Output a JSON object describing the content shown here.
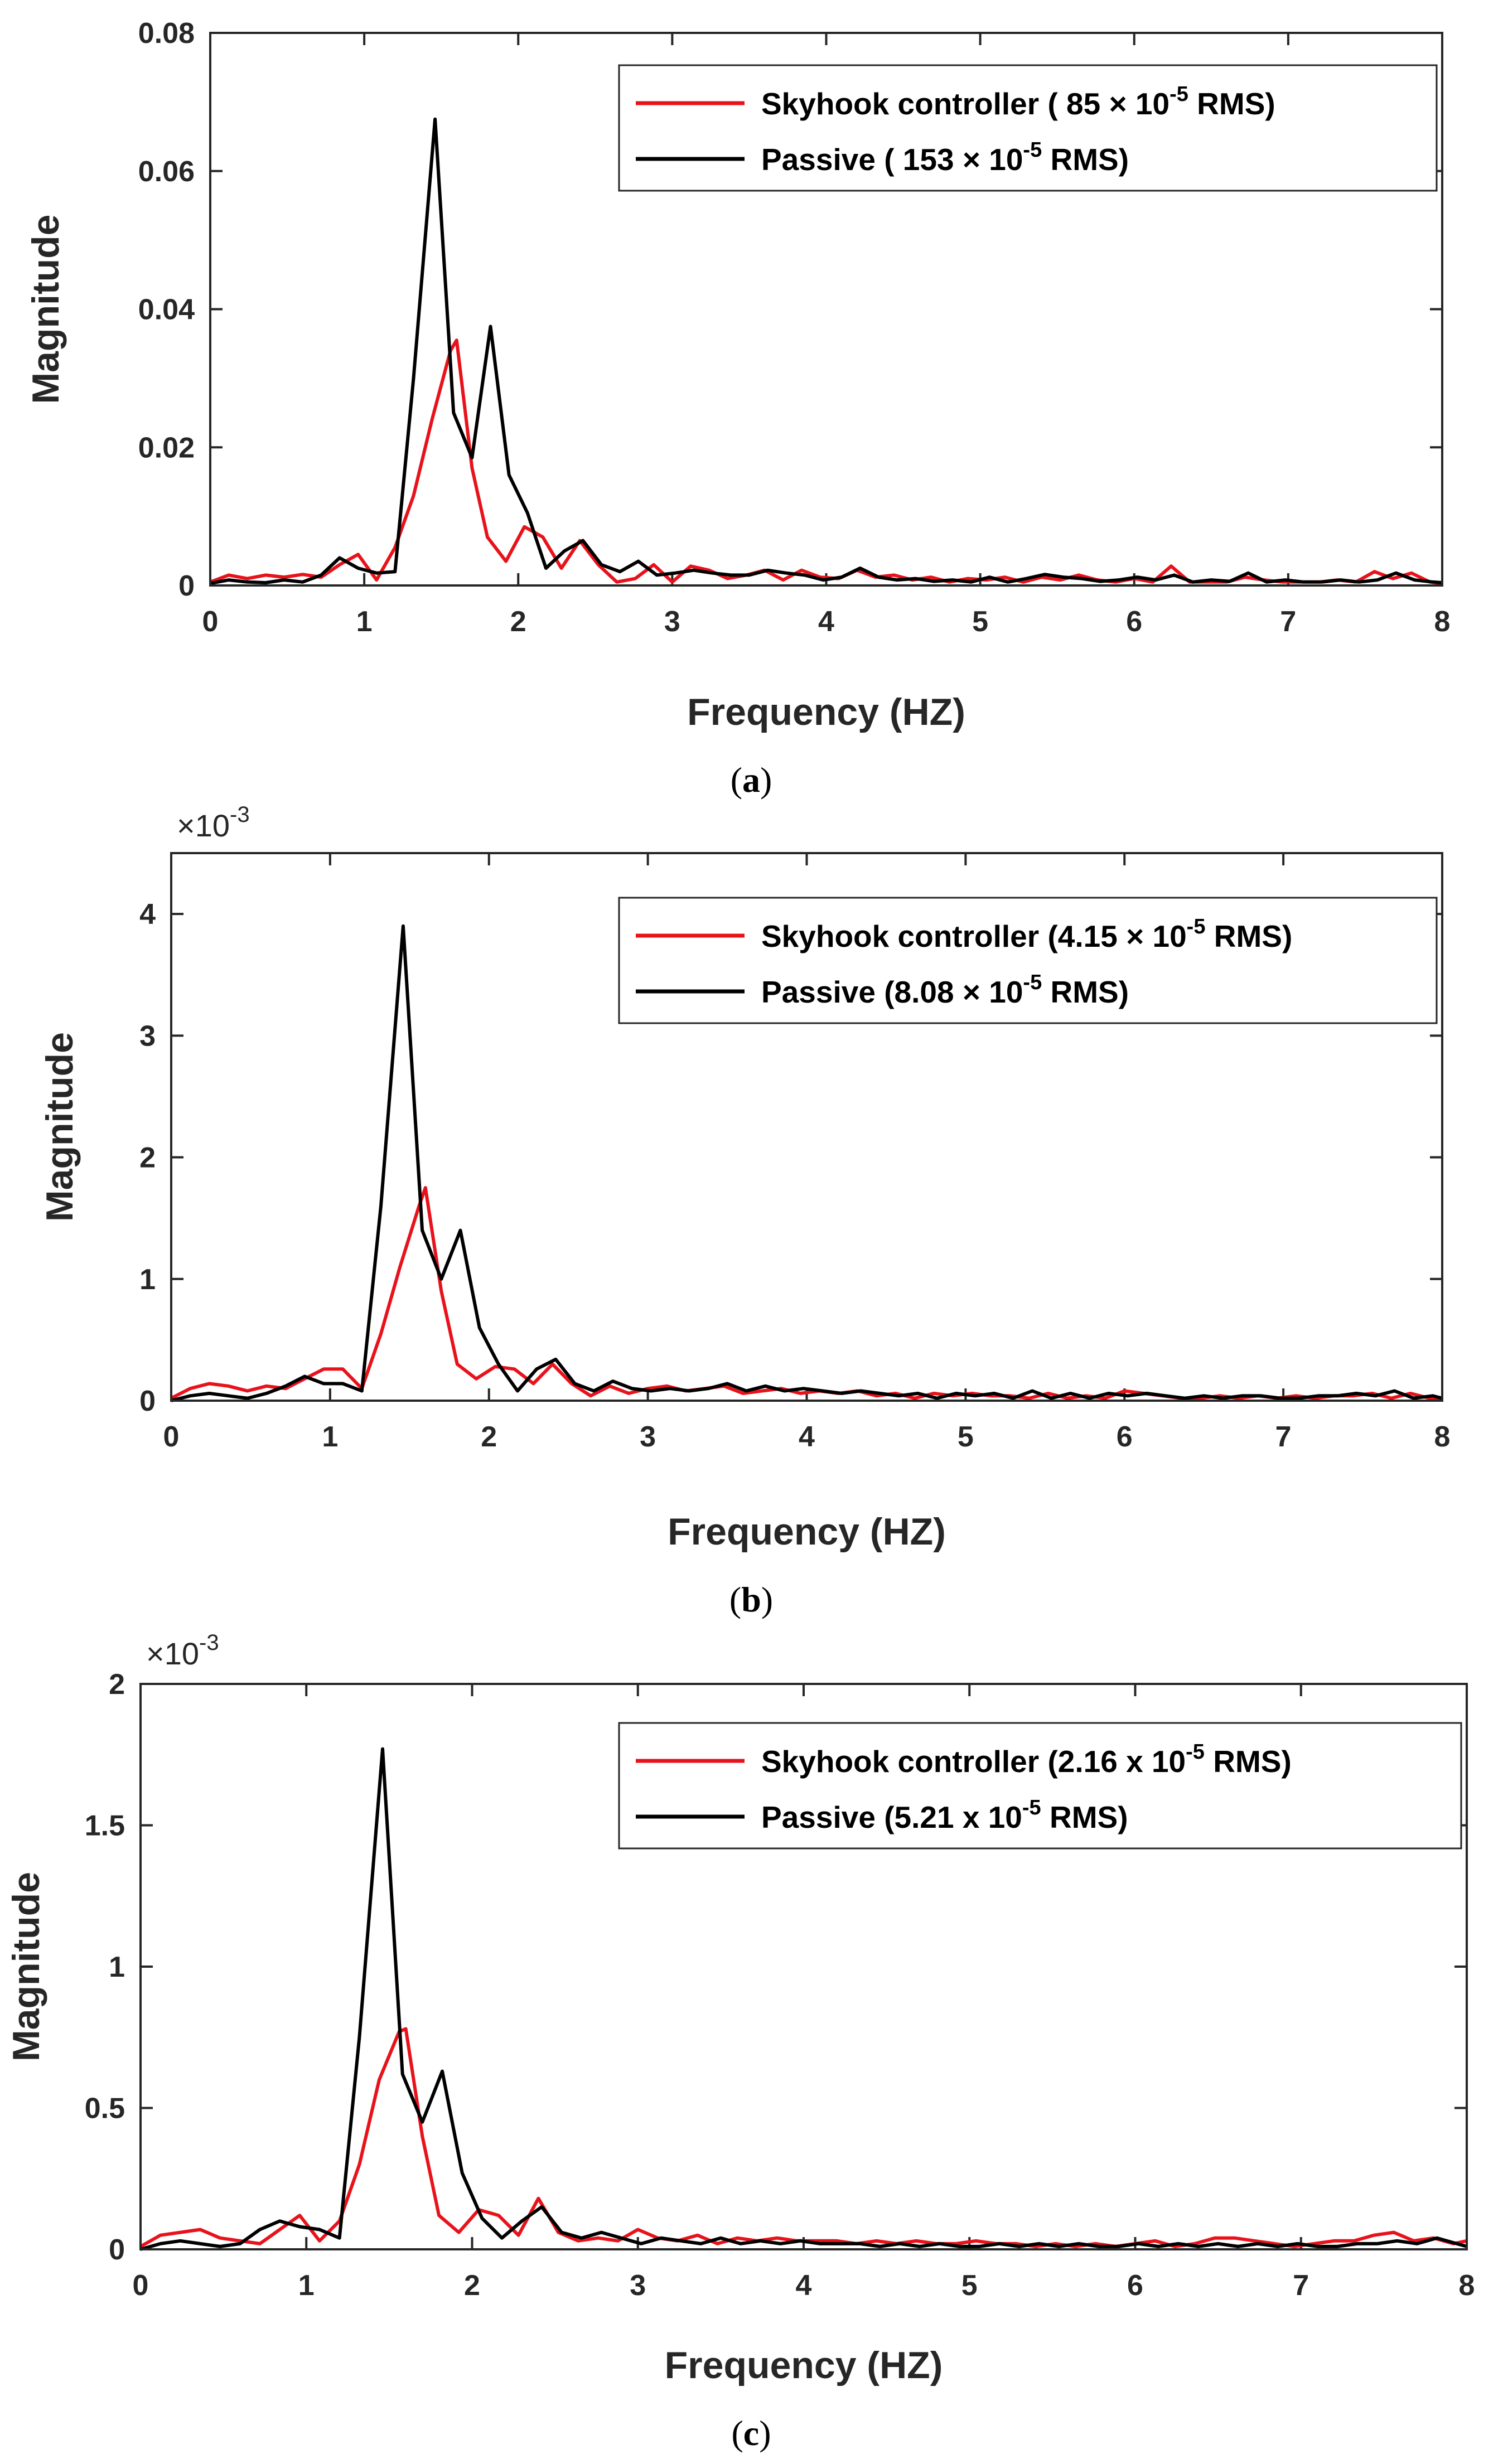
{
  "chart_data": [
    {
      "type": "line",
      "caption": {
        "open": "(",
        "letter": "a",
        "close": ")"
      },
      "xlabel": "Frequency (HZ)",
      "ylabel": "Magnitude",
      "xlim": [
        0,
        8
      ],
      "ylim": [
        0,
        0.08
      ],
      "xticks": [
        "0",
        "1",
        "2",
        "3",
        "4",
        "5",
        "6",
        "7",
        "8"
      ],
      "yticks": [
        "0",
        "0.02",
        "0.04",
        "0.06",
        "0.08"
      ],
      "ytick_values": [
        0,
        0.02,
        0.04,
        0.06,
        0.08
      ],
      "exponent_label": null,
      "legend_position": "top-right",
      "series": [
        {
          "name": "Skyhook controller",
          "legend_prefix": "Skyhook controller ( 85 × 10",
          "legend_sup": "-5",
          "legend_suffix": " RMS)",
          "color": "#e8121b",
          "x": [
            0,
            0.12,
            0.24,
            0.36,
            0.48,
            0.6,
            0.72,
            0.84,
            0.96,
            1.08,
            1.2,
            1.32,
            1.44,
            1.56,
            1.6,
            1.7,
            1.8,
            1.92,
            2.04,
            2.16,
            2.28,
            2.4,
            2.52,
            2.64,
            2.76,
            2.88,
            3.0,
            3.12,
            3.24,
            3.36,
            3.48,
            3.6,
            3.72,
            3.84,
            3.96,
            4.08,
            4.2,
            4.32,
            4.44,
            4.56,
            4.68,
            4.8,
            4.92,
            5.04,
            5.16,
            5.28,
            5.4,
            5.52,
            5.64,
            5.76,
            5.88,
            6.0,
            6.12,
            6.24,
            6.36,
            6.48,
            6.6,
            6.72,
            6.84,
            6.96,
            7.08,
            7.2,
            7.32,
            7.44,
            7.56,
            7.68,
            7.8,
            7.92,
            8.0
          ],
          "values": [
            0.0005,
            0.0015,
            0.001,
            0.0015,
            0.0012,
            0.0016,
            0.0012,
            0.003,
            0.0045,
            0.0008,
            0.0055,
            0.013,
            0.024,
            0.034,
            0.0355,
            0.017,
            0.007,
            0.0035,
            0.0085,
            0.007,
            0.0025,
            0.0065,
            0.003,
            0.0005,
            0.001,
            0.003,
            0.0005,
            0.0028,
            0.0022,
            0.001,
            0.0015,
            0.0022,
            0.0008,
            0.0022,
            0.0012,
            0.001,
            0.0022,
            0.0012,
            0.0015,
            0.0008,
            0.0012,
            0.0005,
            0.001,
            0.0008,
            0.0012,
            0.0005,
            0.0012,
            0.0008,
            0.0015,
            0.0008,
            0.0005,
            0.001,
            0.0005,
            0.0028,
            0.0005,
            0.0005,
            0.0005,
            0.0012,
            0.0008,
            0.0005,
            0.0005,
            0.0005,
            0.0008,
            0.0005,
            0.002,
            0.001,
            0.0018,
            0.0005,
            0.0003
          ]
        },
        {
          "name": "Passive",
          "legend_prefix": "Passive  ( 153 × 10",
          "legend_sup": "-5",
          "legend_suffix": " RMS)",
          "color": "#000000",
          "x": [
            0,
            0.12,
            0.24,
            0.36,
            0.48,
            0.6,
            0.72,
            0.84,
            0.96,
            1.08,
            1.2,
            1.32,
            1.46,
            1.58,
            1.7,
            1.82,
            1.94,
            2.06,
            2.18,
            2.3,
            2.42,
            2.54,
            2.66,
            2.78,
            2.9,
            3.02,
            3.14,
            3.26,
            3.38,
            3.5,
            3.62,
            3.74,
            3.86,
            3.98,
            4.1,
            4.22,
            4.34,
            4.46,
            4.58,
            4.7,
            4.82,
            4.94,
            5.06,
            5.18,
            5.3,
            5.42,
            5.54,
            5.66,
            5.78,
            5.9,
            6.02,
            6.14,
            6.26,
            6.38,
            6.5,
            6.62,
            6.74,
            6.86,
            6.98,
            7.1,
            7.22,
            7.34,
            7.46,
            7.58,
            7.7,
            7.82,
            7.94,
            8.0
          ],
          "values": [
            0.0003,
            0.0008,
            0.0005,
            0.0004,
            0.0008,
            0.0005,
            0.0015,
            0.004,
            0.0025,
            0.0018,
            0.002,
            0.03,
            0.0675,
            0.025,
            0.0185,
            0.0375,
            0.016,
            0.0105,
            0.0025,
            0.005,
            0.0065,
            0.003,
            0.002,
            0.0035,
            0.0015,
            0.0018,
            0.0022,
            0.0018,
            0.0015,
            0.0015,
            0.0022,
            0.0018,
            0.0015,
            0.0008,
            0.0012,
            0.0025,
            0.0012,
            0.0008,
            0.001,
            0.0006,
            0.0008,
            0.0005,
            0.0012,
            0.0005,
            0.001,
            0.0016,
            0.0012,
            0.001,
            0.0006,
            0.0008,
            0.0012,
            0.0008,
            0.0015,
            0.0005,
            0.0008,
            0.0006,
            0.0018,
            0.0005,
            0.0008,
            0.0005,
            0.0005,
            0.0008,
            0.0005,
            0.0008,
            0.0018,
            0.0008,
            0.0005,
            0.0004
          ]
        }
      ]
    },
    {
      "type": "line",
      "caption": {
        "open": "(",
        "letter": "b",
        "close": ")"
      },
      "xlabel": "Frequency (HZ)",
      "ylabel": "Magnitude",
      "xlim": [
        0,
        8
      ],
      "ylim": [
        0,
        4.5
      ],
      "xticks": [
        "0",
        "1",
        "2",
        "3",
        "4",
        "5",
        "6",
        "7",
        "8"
      ],
      "yticks": [
        "0",
        "1",
        "2",
        "3",
        "4"
      ],
      "ytick_values": [
        0,
        1,
        2,
        3,
        4
      ],
      "exponent_label": {
        "base": "×10",
        "exp": "-3"
      },
      "legend_position": "top-right",
      "series": [
        {
          "name": "Skyhook controller",
          "legend_prefix": "Skyhook controller (4.15 × 10",
          "legend_sup": "-5",
          "legend_suffix": " RMS)",
          "color": "#e8121b",
          "x": [
            0,
            0.12,
            0.24,
            0.36,
            0.48,
            0.6,
            0.72,
            0.84,
            0.96,
            1.08,
            1.2,
            1.32,
            1.44,
            1.56,
            1.6,
            1.7,
            1.8,
            1.92,
            2.04,
            2.16,
            2.28,
            2.4,
            2.52,
            2.64,
            2.76,
            2.88,
            3.0,
            3.12,
            3.24,
            3.36,
            3.48,
            3.6,
            3.72,
            3.84,
            3.96,
            4.08,
            4.2,
            4.32,
            4.44,
            4.56,
            4.68,
            4.8,
            4.92,
            5.04,
            5.16,
            5.28,
            5.4,
            5.52,
            5.64,
            5.76,
            5.88,
            6.0,
            6.12,
            6.24,
            6.36,
            6.48,
            6.6,
            6.72,
            6.84,
            6.96,
            7.08,
            7.2,
            7.32,
            7.44,
            7.56,
            7.68,
            7.8,
            7.92,
            8.0
          ],
          "values": [
            0.02,
            0.1,
            0.14,
            0.12,
            0.08,
            0.12,
            0.1,
            0.18,
            0.26,
            0.26,
            0.1,
            0.55,
            1.1,
            1.6,
            1.75,
            0.9,
            0.3,
            0.18,
            0.28,
            0.26,
            0.14,
            0.3,
            0.14,
            0.04,
            0.12,
            0.06,
            0.1,
            0.12,
            0.08,
            0.1,
            0.12,
            0.06,
            0.08,
            0.1,
            0.06,
            0.08,
            0.06,
            0.08,
            0.04,
            0.06,
            0.02,
            0.06,
            0.04,
            0.06,
            0.04,
            0.04,
            0.02,
            0.06,
            0.02,
            0.04,
            0.02,
            0.08,
            0.06,
            0.04,
            0.02,
            0.02,
            0.04,
            0.02,
            0.04,
            0.02,
            0.04,
            0.02,
            0.04,
            0.04,
            0.06,
            0.02,
            0.06,
            0.02,
            0.02
          ]
        },
        {
          "name": "Passive",
          "legend_prefix": "Passive  (8.08 × 10",
          "legend_sup": "-5",
          "legend_suffix": " RMS)",
          "color": "#000000",
          "x": [
            0,
            0.12,
            0.24,
            0.36,
            0.48,
            0.6,
            0.72,
            0.84,
            0.96,
            1.08,
            1.2,
            1.32,
            1.46,
            1.58,
            1.7,
            1.82,
            1.94,
            2.06,
            2.18,
            2.3,
            2.42,
            2.54,
            2.66,
            2.78,
            2.9,
            3.02,
            3.14,
            3.26,
            3.38,
            3.5,
            3.62,
            3.74,
            3.86,
            3.98,
            4.1,
            4.22,
            4.34,
            4.46,
            4.58,
            4.7,
            4.82,
            4.94,
            5.06,
            5.18,
            5.3,
            5.42,
            5.54,
            5.66,
            5.78,
            5.9,
            6.02,
            6.14,
            6.26,
            6.38,
            6.5,
            6.62,
            6.74,
            6.86,
            6.98,
            7.1,
            7.22,
            7.34,
            7.46,
            7.58,
            7.7,
            7.82,
            7.94,
            8.0
          ],
          "values": [
            0.0,
            0.04,
            0.06,
            0.04,
            0.02,
            0.06,
            0.12,
            0.2,
            0.14,
            0.14,
            0.08,
            1.6,
            3.9,
            1.4,
            1.0,
            1.4,
            0.6,
            0.3,
            0.08,
            0.26,
            0.34,
            0.14,
            0.08,
            0.16,
            0.1,
            0.08,
            0.1,
            0.08,
            0.1,
            0.14,
            0.08,
            0.12,
            0.08,
            0.1,
            0.08,
            0.06,
            0.08,
            0.06,
            0.04,
            0.06,
            0.02,
            0.06,
            0.04,
            0.06,
            0.02,
            0.08,
            0.02,
            0.06,
            0.02,
            0.06,
            0.04,
            0.06,
            0.04,
            0.02,
            0.04,
            0.02,
            0.04,
            0.04,
            0.02,
            0.02,
            0.04,
            0.04,
            0.06,
            0.04,
            0.08,
            0.02,
            0.04,
            0.02
          ]
        }
      ]
    },
    {
      "type": "line",
      "caption": {
        "open": "(",
        "letter": "c",
        "close": ")"
      },
      "xlabel": "Frequency (HZ)",
      "ylabel": "Magnitude",
      "xlim": [
        0,
        8
      ],
      "ylim": [
        0,
        2
      ],
      "xticks": [
        "0",
        "1",
        "2",
        "3",
        "4",
        "5",
        "6",
        "7",
        "8"
      ],
      "yticks": [
        "0",
        "0.5",
        "1",
        "1.5",
        "2"
      ],
      "ytick_values": [
        0,
        0.5,
        1,
        1.5,
        2
      ],
      "exponent_label": {
        "base": "×10",
        "exp": "-3"
      },
      "legend_position": "top-right",
      "series": [
        {
          "name": "Skyhook controller",
          "legend_prefix": "Skyhook controller (2.16 x 10",
          "legend_sup": "-5",
          "legend_suffix": " RMS)",
          "color": "#e8121b",
          "x": [
            0,
            0.12,
            0.24,
            0.36,
            0.48,
            0.6,
            0.72,
            0.84,
            0.96,
            1.08,
            1.2,
            1.32,
            1.44,
            1.56,
            1.6,
            1.7,
            1.8,
            1.92,
            2.04,
            2.16,
            2.28,
            2.4,
            2.52,
            2.64,
            2.76,
            2.88,
            3.0,
            3.12,
            3.24,
            3.36,
            3.48,
            3.6,
            3.72,
            3.84,
            3.96,
            4.08,
            4.2,
            4.32,
            4.44,
            4.56,
            4.68,
            4.8,
            4.92,
            5.04,
            5.16,
            5.28,
            5.4,
            5.52,
            5.64,
            5.76,
            5.88,
            6.0,
            6.12,
            6.24,
            6.36,
            6.48,
            6.6,
            6.72,
            6.84,
            6.96,
            7.08,
            7.2,
            7.32,
            7.44,
            7.56,
            7.68,
            7.8,
            7.92,
            8.0
          ],
          "values": [
            0.01,
            0.05,
            0.06,
            0.07,
            0.04,
            0.03,
            0.02,
            0.07,
            0.12,
            0.03,
            0.1,
            0.3,
            0.6,
            0.77,
            0.78,
            0.4,
            0.12,
            0.06,
            0.14,
            0.12,
            0.05,
            0.18,
            0.06,
            0.03,
            0.04,
            0.03,
            0.07,
            0.04,
            0.03,
            0.05,
            0.02,
            0.04,
            0.03,
            0.04,
            0.03,
            0.03,
            0.03,
            0.02,
            0.03,
            0.02,
            0.03,
            0.02,
            0.02,
            0.03,
            0.02,
            0.02,
            0.01,
            0.02,
            0.01,
            0.02,
            0.01,
            0.02,
            0.03,
            0.01,
            0.02,
            0.04,
            0.04,
            0.03,
            0.02,
            0.01,
            0.02,
            0.03,
            0.03,
            0.05,
            0.06,
            0.03,
            0.04,
            0.02,
            0.03
          ]
        },
        {
          "name": "Passive",
          "legend_prefix": "Passive  (5.21 x 10",
          "legend_sup": "-5",
          "legend_suffix": " RMS)",
          "color": "#000000",
          "x": [
            0,
            0.12,
            0.24,
            0.36,
            0.48,
            0.6,
            0.72,
            0.84,
            0.96,
            1.08,
            1.2,
            1.32,
            1.46,
            1.58,
            1.7,
            1.82,
            1.94,
            2.06,
            2.18,
            2.3,
            2.42,
            2.54,
            2.66,
            2.78,
            2.9,
            3.02,
            3.14,
            3.26,
            3.38,
            3.5,
            3.62,
            3.74,
            3.86,
            3.98,
            4.1,
            4.22,
            4.34,
            4.46,
            4.58,
            4.7,
            4.82,
            4.94,
            5.06,
            5.18,
            5.3,
            5.42,
            5.54,
            5.66,
            5.78,
            5.9,
            6.02,
            6.14,
            6.26,
            6.38,
            6.5,
            6.62,
            6.74,
            6.86,
            6.98,
            7.1,
            7.22,
            7.34,
            7.46,
            7.58,
            7.7,
            7.82,
            7.94,
            8.0
          ],
          "values": [
            0.0,
            0.02,
            0.03,
            0.02,
            0.01,
            0.02,
            0.07,
            0.1,
            0.08,
            0.07,
            0.04,
            0.75,
            1.77,
            0.62,
            0.45,
            0.63,
            0.27,
            0.11,
            0.04,
            0.1,
            0.15,
            0.06,
            0.04,
            0.06,
            0.04,
            0.02,
            0.04,
            0.03,
            0.02,
            0.04,
            0.02,
            0.03,
            0.02,
            0.03,
            0.02,
            0.02,
            0.02,
            0.01,
            0.02,
            0.01,
            0.02,
            0.01,
            0.01,
            0.02,
            0.01,
            0.02,
            0.01,
            0.02,
            0.01,
            0.01,
            0.02,
            0.01,
            0.02,
            0.01,
            0.02,
            0.01,
            0.02,
            0.01,
            0.02,
            0.01,
            0.01,
            0.02,
            0.02,
            0.03,
            0.02,
            0.04,
            0.02,
            0.01
          ]
        }
      ]
    }
  ]
}
